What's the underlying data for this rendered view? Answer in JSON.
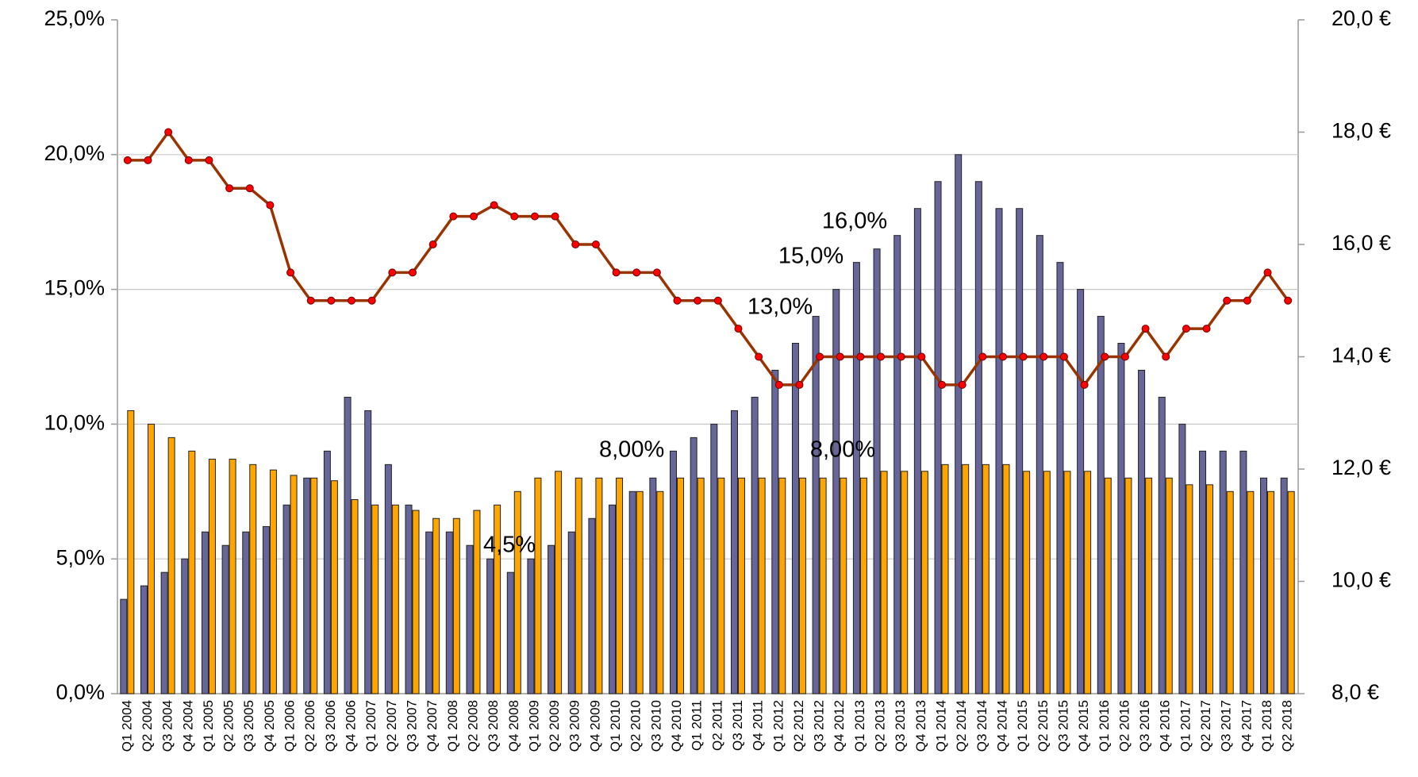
{
  "chart_data": {
    "type": "bar",
    "categories": [
      "Q1 2004",
      "Q2 2004",
      "Q3 2004",
      "Q4 2004",
      "Q1 2005",
      "Q2 2005",
      "Q3 2005",
      "Q4 2005",
      "Q1 2006",
      "Q2 2006",
      "Q3 2006",
      "Q4 2006",
      "Q1 2007",
      "Q2 2007",
      "Q3 2007",
      "Q4 2007",
      "Q1 2008",
      "Q2 2008",
      "Q3 2008",
      "Q4 2008",
      "Q1 2009",
      "Q2 2009",
      "Q3 2009",
      "Q4 2009",
      "Q1 2010",
      "Q2 2010",
      "Q3 2010",
      "Q4 2010",
      "Q1 2011",
      "Q2 2011",
      "Q3 2011",
      "Q4 2011",
      "Q1 2012",
      "Q2 2012",
      "Q3 2012",
      "Q4 2012",
      "Q1 2013",
      "Q2 2013",
      "Q3 2013",
      "Q4 2013",
      "Q1 2014",
      "Q2 2014",
      "Q3 2014",
      "Q4 2014",
      "Q1 2015",
      "Q2 2015",
      "Q3 2015",
      "Q4 2015",
      "Q1 2016",
      "Q2 2016",
      "Q3 2016",
      "Q4 2016",
      "Q1 2017",
      "Q2 2017",
      "Q3 2017",
      "Q4 2017",
      "Q1 2018",
      "Q2 2018"
    ],
    "series": [
      {
        "type": "bar",
        "color": "#66669a",
        "values": [
          3.5,
          4,
          4.5,
          5,
          6,
          5.5,
          6,
          6.2,
          7,
          8,
          9,
          11,
          10.5,
          8.5,
          7,
          6,
          6,
          5.5,
          5,
          4.5,
          5,
          5.5,
          6,
          6.5,
          7,
          7.5,
          8,
          9,
          9.5,
          10,
          10.5,
          11,
          12,
          13,
          14,
          15,
          16,
          16.5,
          17,
          18,
          19,
          20,
          19,
          18,
          18,
          17,
          16,
          15,
          14,
          13,
          12,
          11,
          10,
          9,
          9,
          9,
          8,
          8
        ]
      },
      {
        "type": "bar",
        "color": "#ffa500",
        "values": [
          10.5,
          10,
          9.5,
          9,
          8.7,
          8.7,
          8.5,
          8.3,
          8.1,
          8,
          7.9,
          7.2,
          7,
          7,
          6.8,
          6.5,
          6.5,
          6.8,
          7,
          7.5,
          8,
          8.25,
          8,
          8,
          8,
          7.5,
          7.5,
          8,
          8,
          8,
          8,
          8,
          8,
          8,
          8,
          8,
          8,
          8.25,
          8.25,
          8.25,
          8.5,
          8.5,
          8.5,
          8.5,
          8.25,
          8.25,
          8.25,
          8.25,
          8,
          8,
          8,
          8,
          7.75,
          7.75,
          7.5,
          7.5,
          7.5,
          7.5
        ]
      },
      {
        "type": "line",
        "axis": "y2",
        "color": "#993300",
        "marker_color": "#ff0000",
        "values": [
          17.5,
          17.5,
          18,
          17.5,
          17.5,
          17,
          17,
          16.7,
          15.5,
          15,
          15,
          15,
          15,
          15.5,
          15.5,
          16,
          16.5,
          16.5,
          16.7,
          16.5,
          16.5,
          16.5,
          16,
          16,
          15.5,
          15.5,
          15.5,
          15,
          15,
          15,
          14.5,
          14,
          13.5,
          13.5,
          14,
          14,
          14,
          14,
          14,
          14,
          13.5,
          13.5,
          14,
          14,
          14,
          14,
          14,
          13.5,
          14,
          14,
          14.5,
          14,
          14.5,
          14.5,
          15,
          15,
          15.5,
          15
        ]
      }
    ],
    "ylim": [
      0,
      25
    ],
    "yticks": [
      {
        "value": 0,
        "label": "0,0%"
      },
      {
        "value": 5,
        "label": "5,0%"
      },
      {
        "value": 10,
        "label": "10,0%"
      },
      {
        "value": 15,
        "label": "15,0%"
      },
      {
        "value": 20,
        "label": "20,0%"
      },
      {
        "value": 25,
        "label": "25,0%"
      }
    ],
    "y2lim": [
      8,
      20
    ],
    "y2ticks": [
      {
        "value": 8,
        "label": "8,0 €"
      },
      {
        "value": 10,
        "label": "10,0 €"
      },
      {
        "value": 12,
        "label": "12,0 €"
      },
      {
        "value": 14,
        "label": "14,0 €"
      },
      {
        "value": 16,
        "label": "16,0 €"
      },
      {
        "value": 18,
        "label": "18,0 €"
      },
      {
        "value": 20,
        "label": "20,0 €"
      }
    ],
    "grid": true,
    "annotations": [
      "16,0%",
      "15,0%",
      "13,0%",
      "8,00%",
      "8,00%",
      "4,5%"
    ]
  }
}
